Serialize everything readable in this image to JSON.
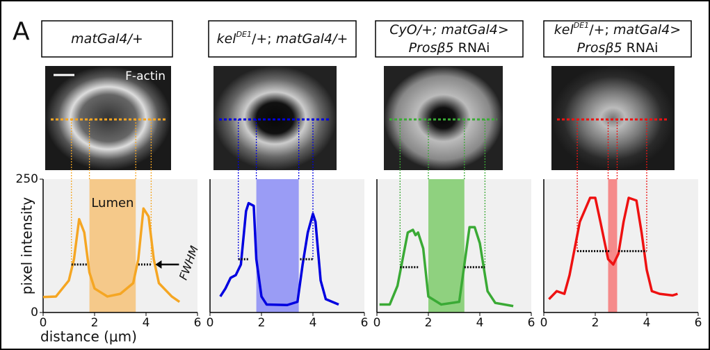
{
  "panel_label": "A",
  "chart_data": [
    {
      "type": "line",
      "title_lines": [
        [
          {
            "text": "matGal4/+",
            "italic": true
          }
        ]
      ],
      "color": "#f5a623",
      "shade": "#f5c98a",
      "x": [
        0,
        0.5,
        1,
        1.2,
        1.4,
        1.6,
        1.8,
        2,
        2.5,
        3,
        3.5,
        3.7,
        3.9,
        4.1,
        4.3,
        4.5,
        5,
        5.3
      ],
      "values": [
        29,
        30,
        60,
        100,
        175,
        150,
        75,
        45,
        30,
        35,
        55,
        100,
        195,
        180,
        100,
        55,
        30,
        20
      ],
      "xlim": [
        0,
        6
      ],
      "ylim": [
        0,
        250
      ],
      "xticks": [
        0,
        2,
        4,
        6
      ],
      "yticks": [
        0,
        250
      ],
      "xlabel": "distance (μm)",
      "ylabel": "pixel intensity",
      "lumen": [
        1.8,
        3.6
      ],
      "fwhm": [
        [
          1.1,
          1.7,
          90
        ],
        [
          3.7,
          4.2,
          90
        ]
      ],
      "image_label": "F-actin",
      "lumen_label": "Lumen",
      "fwhm_label": "FWHM"
    },
    {
      "type": "line",
      "title_lines": [
        [
          {
            "text": "kel",
            "italic": true
          },
          {
            "text": "DE1",
            "italic": true,
            "sup": true
          },
          {
            "text": "/+; ",
            "italic": false
          },
          {
            "text": "matGal4/+",
            "italic": true
          }
        ]
      ],
      "color": "#0000e0",
      "shade": "#9a9cf5",
      "x": [
        0.4,
        0.6,
        0.8,
        1,
        1.2,
        1.4,
        1.5,
        1.7,
        1.8,
        2,
        2.2,
        3,
        3.4,
        3.6,
        3.8,
        4,
        4.1,
        4.3,
        4.5,
        5
      ],
      "values": [
        30,
        45,
        65,
        70,
        90,
        190,
        205,
        200,
        100,
        30,
        15,
        14,
        20,
        90,
        150,
        185,
        170,
        60,
        25,
        15
      ],
      "xlim": [
        0,
        6
      ],
      "ylim": [
        0,
        250
      ],
      "xticks": [
        0,
        2,
        4,
        6
      ],
      "lumen": [
        1.8,
        3.45
      ],
      "fwhm": [
        [
          1.1,
          1.5,
          100
        ],
        [
          3.5,
          4.0,
          100
        ]
      ]
    },
    {
      "type": "line",
      "title_lines": [
        [
          {
            "text": "CyO/+; matGal4>",
            "italic": true
          }
        ],
        [
          {
            "text": "Prosβ5",
            "italic": true
          },
          {
            "text": " RNAi",
            "italic": false
          }
        ]
      ],
      "color": "#3aaa35",
      "shade": "#8fd17f",
      "x": [
        0.1,
        0.5,
        0.8,
        1,
        1.2,
        1.4,
        1.5,
        1.6,
        1.8,
        2,
        2.5,
        3.2,
        3.4,
        3.6,
        3.8,
        4,
        4.3,
        4.6,
        5.3
      ],
      "values": [
        15,
        15,
        50,
        100,
        150,
        155,
        145,
        150,
        120,
        30,
        15,
        20,
        90,
        160,
        160,
        130,
        40,
        18,
        12
      ],
      "xlim": [
        0,
        6
      ],
      "ylim": [
        0,
        250
      ],
      "xticks": [
        0,
        2,
        4,
        6
      ],
      "lumen": [
        2.0,
        3.4
      ],
      "fwhm": [
        [
          0.9,
          1.6,
          85
        ],
        [
          3.4,
          4.2,
          85
        ]
      ]
    },
    {
      "type": "line",
      "title_lines": [
        [
          {
            "text": "kel",
            "italic": true
          },
          {
            "text": "DE1",
            "italic": true,
            "sup": true
          },
          {
            "text": "/+; ",
            "italic": false
          },
          {
            "text": "matGal4>",
            "italic": true
          }
        ],
        [
          {
            "text": "Prosβ5",
            "italic": true
          },
          {
            "text": " RNAi",
            "italic": false
          }
        ]
      ],
      "color": "#ee1111",
      "shade": "#f58a8a",
      "x": [
        0.2,
        0.5,
        0.8,
        1,
        1.4,
        1.8,
        2,
        2.2,
        2.5,
        2.7,
        2.9,
        3.1,
        3.3,
        3.6,
        3.8,
        4,
        4.2,
        4.5,
        5,
        5.2
      ],
      "values": [
        25,
        40,
        35,
        70,
        170,
        215,
        215,
        170,
        100,
        90,
        110,
        170,
        215,
        210,
        150,
        80,
        40,
        35,
        32,
        35
      ],
      "xlim": [
        0,
        6
      ],
      "ylim": [
        0,
        250
      ],
      "xticks": [
        0,
        2,
        4,
        6
      ],
      "lumen": [
        2.5,
        2.85
      ],
      "fwhm": [
        [
          1.3,
          2.6,
          115
        ],
        [
          2.9,
          4.0,
          115
        ]
      ]
    }
  ]
}
